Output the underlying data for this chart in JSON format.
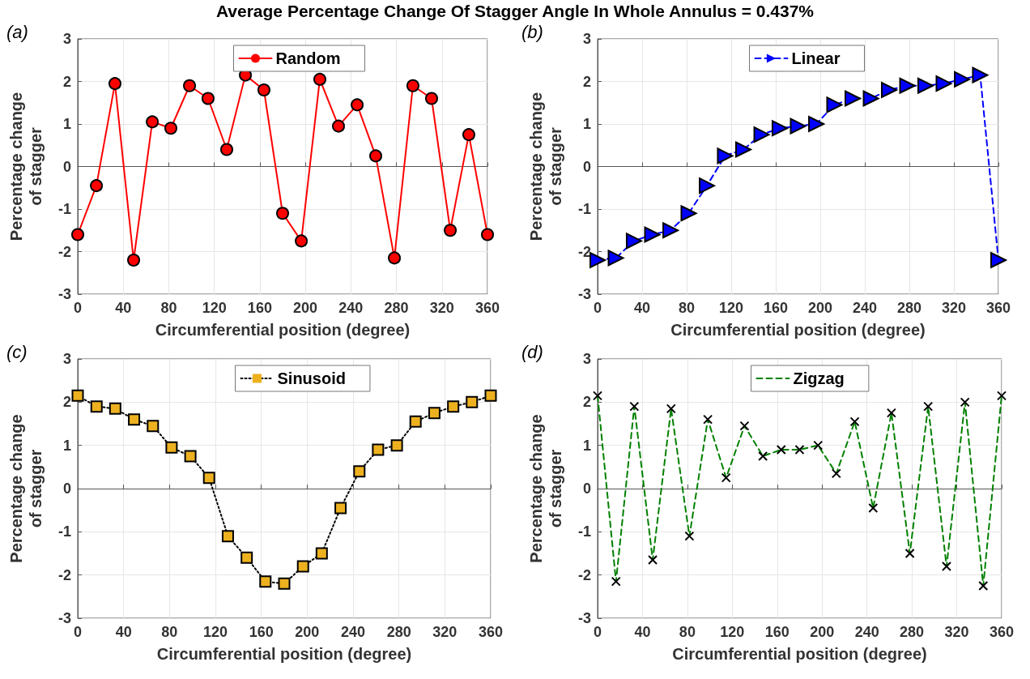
{
  "chart_data": [
    {
      "type": "line",
      "title": "Average Percentage Change Of Stagger Angle In Whole Annulus = 0.437%",
      "annotations": [
        "(a)"
      ],
      "xlabel": "Circumferential position (degree)",
      "ylabel": "Percentage change\nof stagger",
      "x": [
        0,
        16.4,
        32.7,
        49.1,
        65.5,
        81.8,
        98.2,
        114.5,
        130.9,
        147.3,
        163.6,
        180,
        196.4,
        212.7,
        229.1,
        245.5,
        261.8,
        278.2,
        294.5,
        310.9,
        327.3,
        343.6,
        360
      ],
      "xlim": [
        0,
        360
      ],
      "xticks": [
        0,
        40,
        80,
        120,
        160,
        200,
        240,
        280,
        320,
        360
      ],
      "ylim": [
        -3,
        3
      ],
      "yticks": [
        -3,
        -2,
        -1,
        0,
        1,
        2,
        3
      ],
      "grid": true,
      "legend": "top",
      "marker": "circle",
      "line_style": "solid",
      "series": [
        {
          "name": "Random",
          "color": "#ff0000",
          "values": [
            -1.6,
            -0.45,
            1.95,
            -2.2,
            1.05,
            0.9,
            1.9,
            1.6,
            0.4,
            2.15,
            1.8,
            -1.1,
            -1.75,
            2.05,
            0.95,
            1.45,
            0.25,
            -2.15,
            1.9,
            1.6,
            -1.5,
            0.75,
            -1.6
          ]
        }
      ]
    },
    {
      "type": "line",
      "annotations": [
        "(b)"
      ],
      "xlabel": "Circumferential position (degree)",
      "ylabel": "Percentage change\nof stagger",
      "x": [
        0,
        16.4,
        32.7,
        49.1,
        65.5,
        81.8,
        98.2,
        114.5,
        130.9,
        147.3,
        163.6,
        180,
        196.4,
        212.7,
        229.1,
        245.5,
        261.8,
        278.2,
        294.5,
        310.9,
        327.3,
        343.6,
        360
      ],
      "xlim": [
        0,
        360
      ],
      "xticks": [
        0,
        40,
        80,
        120,
        160,
        200,
        240,
        280,
        320,
        360
      ],
      "ylim": [
        -3,
        3
      ],
      "yticks": [
        -3,
        -2,
        -1,
        0,
        1,
        2,
        3
      ],
      "grid": true,
      "legend": "top",
      "marker": "triangle",
      "line_style": "dashed",
      "series": [
        {
          "name": "Linear",
          "color": "#0000ff",
          "values": [
            -2.2,
            -2.15,
            -1.75,
            -1.6,
            -1.5,
            -1.1,
            -0.45,
            0.25,
            0.4,
            0.75,
            0.9,
            0.95,
            1.0,
            1.45,
            1.6,
            1.6,
            1.8,
            1.9,
            1.9,
            1.95,
            2.05,
            2.15,
            -2.2
          ]
        }
      ]
    },
    {
      "type": "line",
      "annotations": [
        "(c)"
      ],
      "xlabel": "Circumferential position (degree)",
      "ylabel": "Percentage change\nof stagger",
      "x": [
        0,
        16.4,
        32.7,
        49.1,
        65.5,
        81.8,
        98.2,
        114.5,
        130.9,
        147.3,
        163.6,
        180,
        196.4,
        212.7,
        229.1,
        245.5,
        261.8,
        278.2,
        294.5,
        310.9,
        327.3,
        343.6,
        360
      ],
      "xlim": [
        0,
        360
      ],
      "xticks": [
        0,
        40,
        80,
        120,
        160,
        200,
        240,
        280,
        320,
        360
      ],
      "ylim": [
        -3,
        3
      ],
      "yticks": [
        -3,
        -2,
        -1,
        0,
        1,
        2,
        3
      ],
      "grid": true,
      "legend": "top",
      "marker": "square",
      "line_style": "dotted",
      "series": [
        {
          "name": "Sinusoid",
          "color": "#000000",
          "colors": [
            "#edb120",
            "#edb120",
            "#edb120",
            "#edb120",
            "#edb120",
            "#edb120",
            "#edb120",
            "#edb120",
            "#edb120",
            "#edb120",
            "#edb120",
            "#edb120",
            "#edb120",
            "#edb120",
            "#edb120",
            "#edb120",
            "#edb120",
            "#edb120",
            "#edb120",
            "#edb120",
            "#edb120",
            "#edb120",
            "#edb120"
          ],
          "values": [
            2.15,
            1.9,
            1.85,
            1.6,
            1.45,
            0.95,
            0.75,
            0.25,
            -1.1,
            -1.6,
            -2.15,
            -2.2,
            -1.8,
            -1.5,
            -0.45,
            0.4,
            0.9,
            1.0,
            1.55,
            1.75,
            1.9,
            2.0,
            2.15
          ]
        }
      ]
    },
    {
      "type": "line",
      "annotations": [
        "(d)"
      ],
      "xlabel": "Circumferential position (degree)",
      "ylabel": "Percentage change\nof stagger",
      "x": [
        0,
        16.4,
        32.7,
        49.1,
        65.5,
        81.8,
        98.2,
        114.5,
        130.9,
        147.3,
        163.6,
        180,
        196.4,
        212.7,
        229.1,
        245.5,
        261.8,
        278.2,
        294.5,
        310.9,
        327.3,
        343.6,
        360
      ],
      "xlim": [
        0,
        360
      ],
      "xticks": [
        0,
        40,
        80,
        120,
        160,
        200,
        240,
        280,
        320,
        360
      ],
      "ylim": [
        -3,
        3
      ],
      "yticks": [
        -3,
        -2,
        -1,
        0,
        1,
        2,
        3
      ],
      "grid": true,
      "legend": "top",
      "marker": "cross",
      "line_style": "dashed",
      "series": [
        {
          "name": "Zigzag",
          "color": "#008000",
          "colors": [
            "#000000",
            "#000000",
            "#000000",
            "#000000",
            "#000000",
            "#000000",
            "#000000",
            "#000000",
            "#000000",
            "#000000",
            "#000000",
            "#000000",
            "#000000",
            "#000000",
            "#000000",
            "#000000",
            "#000000",
            "#000000",
            "#000000",
            "#000000",
            "#000000",
            "#000000",
            "#000000"
          ],
          "values": [
            2.15,
            -2.15,
            1.9,
            -1.65,
            1.85,
            -1.1,
            1.6,
            0.25,
            1.45,
            0.75,
            0.9,
            0.9,
            1.0,
            0.35,
            1.55,
            -0.45,
            1.75,
            -1.5,
            1.9,
            -1.8,
            2.0,
            -2.25,
            2.15
          ]
        }
      ]
    }
  ]
}
